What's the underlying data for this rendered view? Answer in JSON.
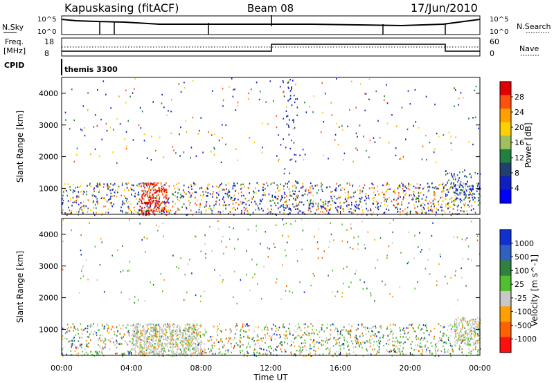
{
  "header": {
    "station": "Kapuskasing (fitACF)",
    "beam": "Beam 08",
    "date": "17/Jun/2010"
  },
  "params": {
    "left_top": "N.Sky",
    "left_mid": "Freq.",
    "left_mid2": "[MHz]",
    "left_bot": "CPID",
    "right_top": "N.Search",
    "right_mid": "Nave",
    "nsky_ticks": [
      "10^5",
      "10^0"
    ],
    "freq_ticks": [
      "18",
      "8"
    ],
    "nave_ticks": [
      "60",
      "0"
    ],
    "cpid_label": "themis 3300"
  },
  "chart_data": [
    {
      "type": "heatmap",
      "title": "",
      "ylabel": "Slant Range [km]",
      "xlabel": "",
      "xlim": [
        "00:00",
        "24:00"
      ],
      "ylim": [
        180,
        4500
      ],
      "yticks": [
        1000,
        2000,
        3000,
        4000
      ],
      "colorbar_label": "Power [dB]",
      "colorbar_ticks": [
        "28",
        "24",
        "20",
        "16",
        "12",
        "8",
        "4"
      ],
      "colorbar_colors": [
        "#e00000",
        "#ff5010",
        "#ffa000",
        "#ffd000",
        "#a0c060",
        "#208040",
        "#204070",
        "#1020c0",
        "#0000ff"
      ],
      "features": [
        {
          "x_range": [
            "00:00",
            "24:00"
          ],
          "slant_range_km": [
            180,
            1200
          ],
          "level": "moderate"
        },
        {
          "x_range": [
            "04:30",
            "06:00"
          ],
          "slant_range_km": [
            180,
            1200
          ],
          "level": "high"
        },
        {
          "x_range": [
            "12:40",
            "13:30"
          ],
          "slant_range_km": [
            180,
            4500
          ],
          "level": "scattered"
        },
        {
          "x_range": [
            "22:00",
            "24:00"
          ],
          "slant_range_km": [
            500,
            1600
          ],
          "level": "low"
        }
      ]
    },
    {
      "type": "heatmap",
      "title": "",
      "ylabel": "Slant Range [km]",
      "xlabel": "Time UT",
      "xlim": [
        "00:00",
        "24:00"
      ],
      "ylim": [
        180,
        4500
      ],
      "yticks": [
        1000,
        2000,
        3000,
        4000
      ],
      "xticks": [
        "00:00",
        "04:00",
        "08:00",
        "12:00",
        "16:00",
        "20:00",
        "00:00"
      ],
      "colorbar_label": "Velocity [m s^-1]",
      "colorbar_ticks": [
        "1000",
        "500",
        "100",
        "25",
        "-25",
        "-100",
        "-500",
        "-1000"
      ],
      "colorbar_colors": [
        "#1030d0",
        "#3060c0",
        "#308040",
        "#50c030",
        "#c8c8c8",
        "#ffa000",
        "#ff6000",
        "#ff1010"
      ],
      "features": [
        {
          "x_range": [
            "00:00",
            "24:00"
          ],
          "slant_range_km": [
            180,
            1200
          ],
          "velocity": "mixed"
        },
        {
          "x_range": [
            "04:00",
            "08:00"
          ],
          "slant_range_km": [
            180,
            1200
          ],
          "velocity": "near zero"
        },
        {
          "x_range": [
            "22:30",
            "24:00"
          ],
          "slant_range_km": [
            500,
            1400
          ],
          "velocity": "near zero"
        }
      ]
    }
  ],
  "colors": {
    "red": "#e00000",
    "orange": "#ff8000",
    "yellow": "#ffd000",
    "green": "#208040",
    "blue": "#1020c0",
    "grey": "#c8c8c8"
  }
}
